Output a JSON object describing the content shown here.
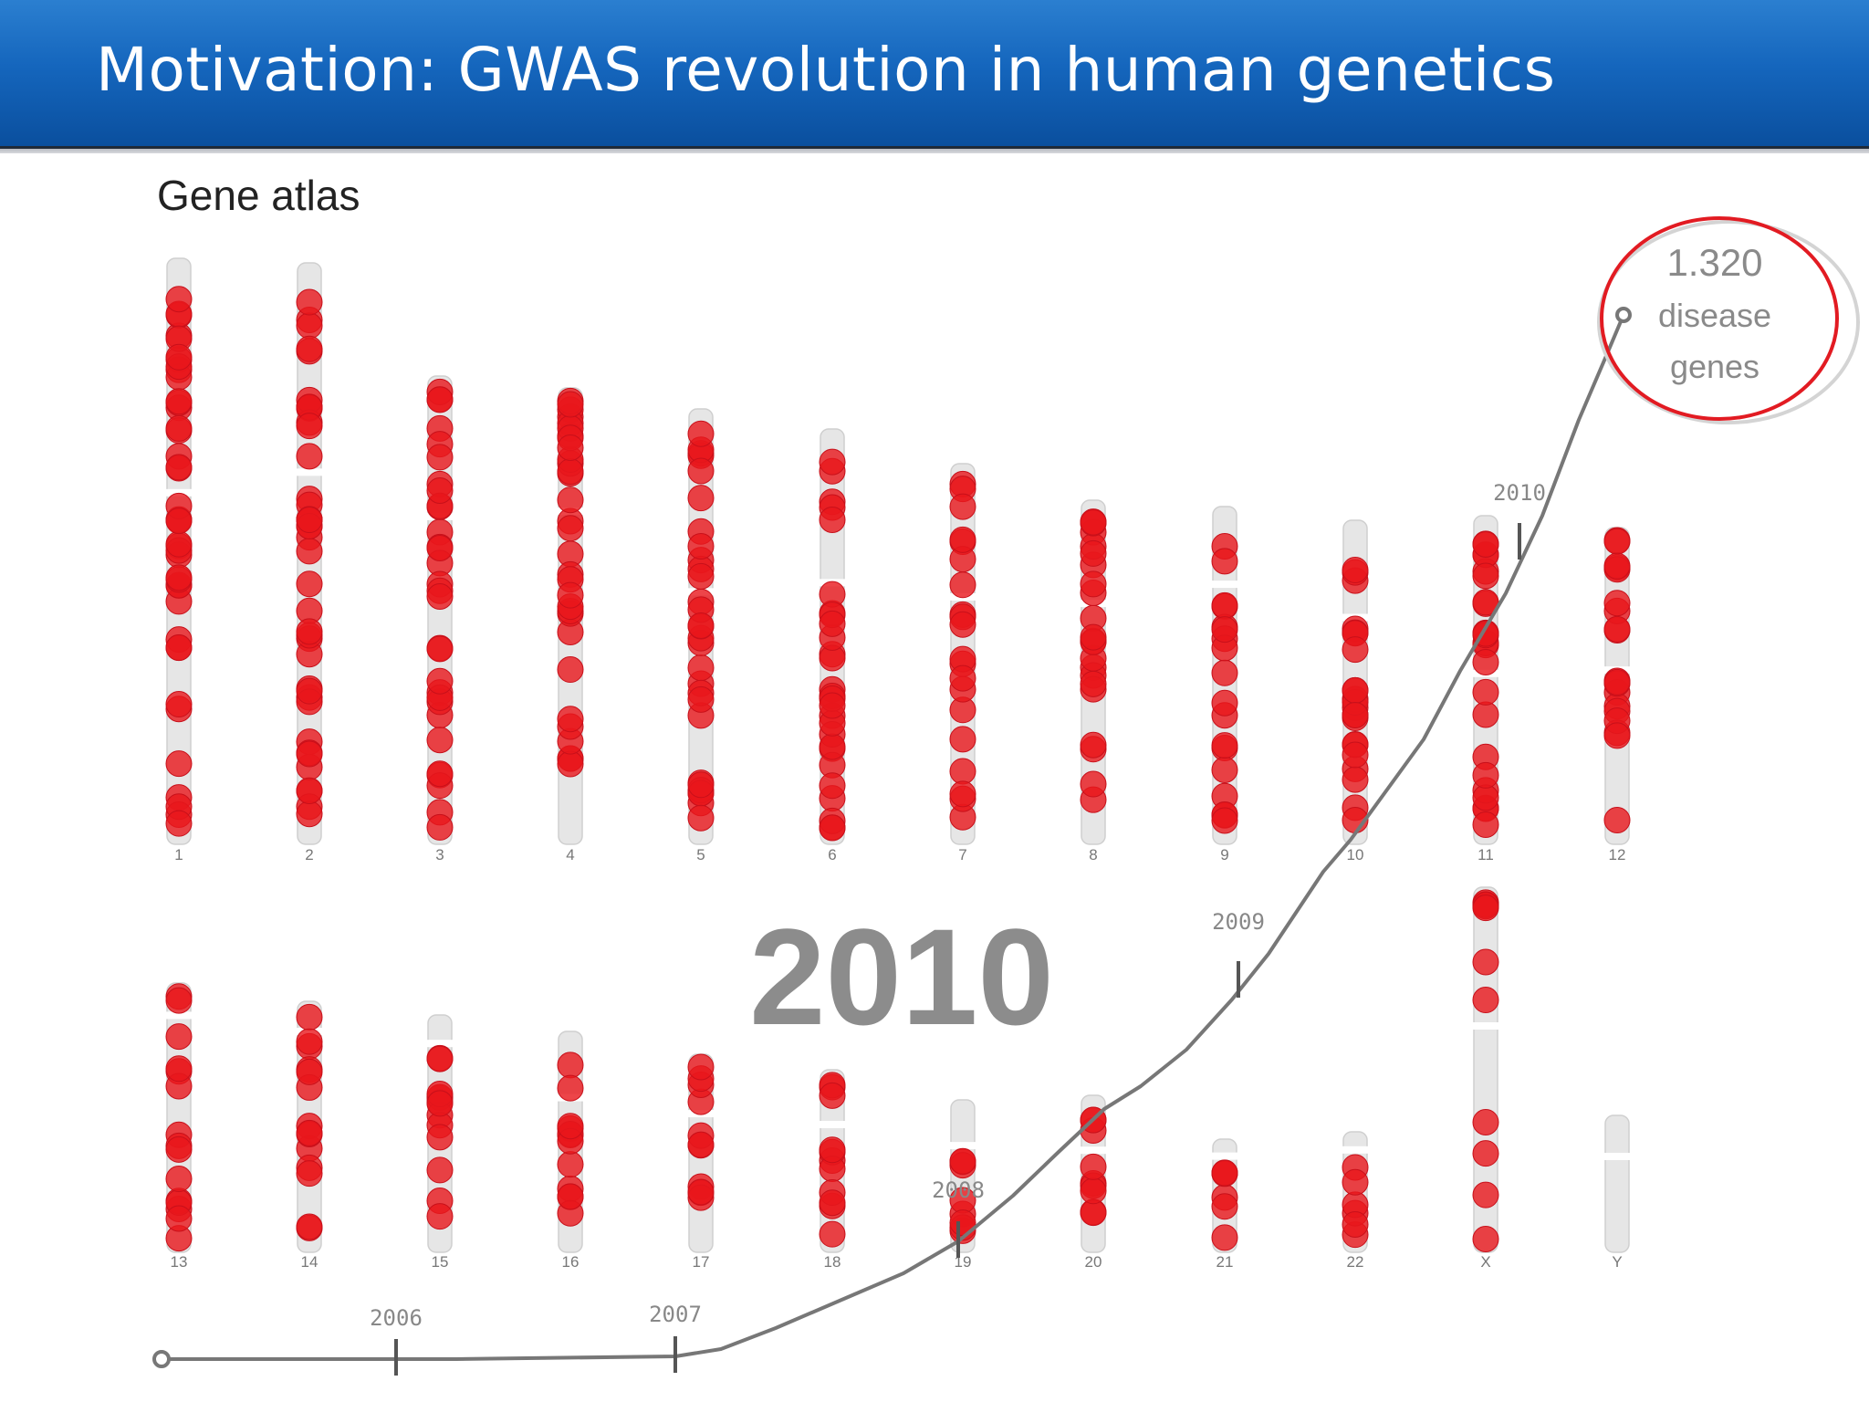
{
  "slide": {
    "title": "Motivation: GWAS revolution in human genetics"
  },
  "figure": {
    "subtitle": "Gene atlas",
    "current_year": "2010",
    "callout": {
      "count": "1.320",
      "line2": "disease",
      "line3": "genes"
    },
    "colors": {
      "header": "#1566bd",
      "gene_marker": "#e8161b",
      "chromosome": "#e6e6e6",
      "curve": "#777777",
      "callout_ring": "#e21b22"
    },
    "chromosomes_top": [
      {
        "label": "1"
      },
      {
        "label": "2"
      },
      {
        "label": "3"
      },
      {
        "label": "4"
      },
      {
        "label": "5"
      },
      {
        "label": "6"
      },
      {
        "label": "7"
      },
      {
        "label": "8"
      },
      {
        "label": "9"
      },
      {
        "label": "10"
      },
      {
        "label": "11"
      },
      {
        "label": "12"
      }
    ],
    "chromosomes_bottom": [
      {
        "label": "13"
      },
      {
        "label": "14"
      },
      {
        "label": "15"
      },
      {
        "label": "16"
      },
      {
        "label": "17"
      },
      {
        "label": "18"
      },
      {
        "label": "19"
      },
      {
        "label": "20"
      },
      {
        "label": "21"
      },
      {
        "label": "22"
      },
      {
        "label": "X"
      },
      {
        "label": "Y"
      }
    ],
    "timeline": [
      {
        "year": "2006"
      },
      {
        "year": "2007"
      },
      {
        "year": "2008"
      },
      {
        "year": "2009"
      },
      {
        "year": "2010"
      }
    ]
  }
}
